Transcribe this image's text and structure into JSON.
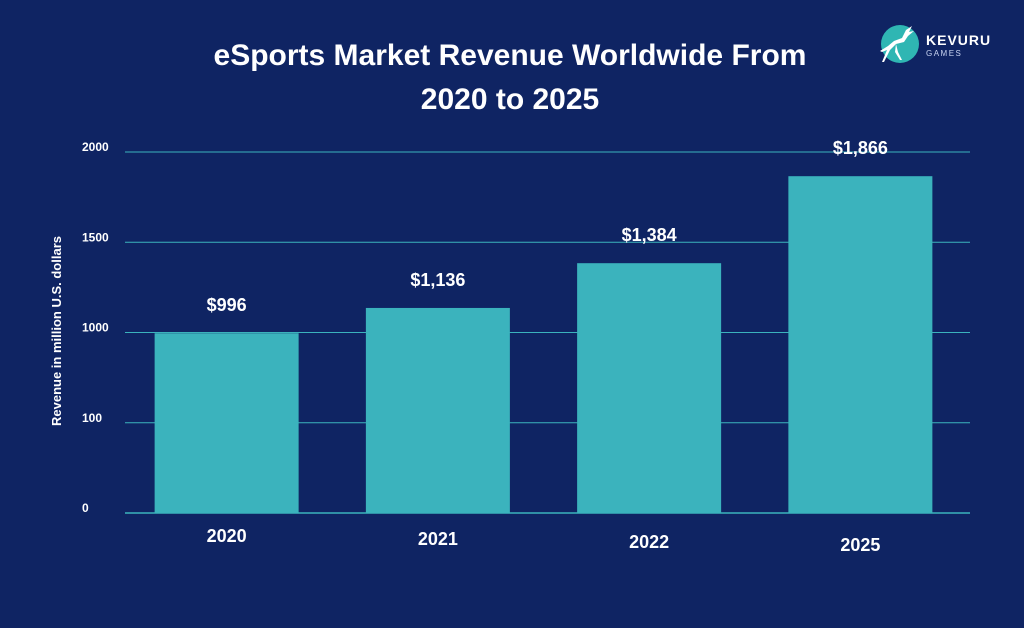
{
  "brand": {
    "name": "KEVURU",
    "sub": "GAMES",
    "colors": {
      "background": "#0f2463",
      "bar": "#3bb3bd",
      "logo_circle": "#2fb6b3"
    }
  },
  "chart_data": {
    "type": "bar",
    "title_lines": [
      "eSports Market Revenue Worldwide From",
      "2020 to 2025"
    ],
    "xlabel": "",
    "ylabel": "Revenue in million U.S. dollars",
    "categories": [
      "2020",
      "2021",
      "2022",
      "2025"
    ],
    "values": [
      996,
      1136,
      1384,
      1866
    ],
    "data_labels": [
      "$996",
      "$1,136",
      "$1,384",
      "$1,866"
    ],
    "y_tick_labels": [
      "0",
      "100",
      "1000",
      "1500",
      "2000"
    ],
    "ylim": [
      0,
      2000
    ],
    "grid": true,
    "legend": "none"
  }
}
